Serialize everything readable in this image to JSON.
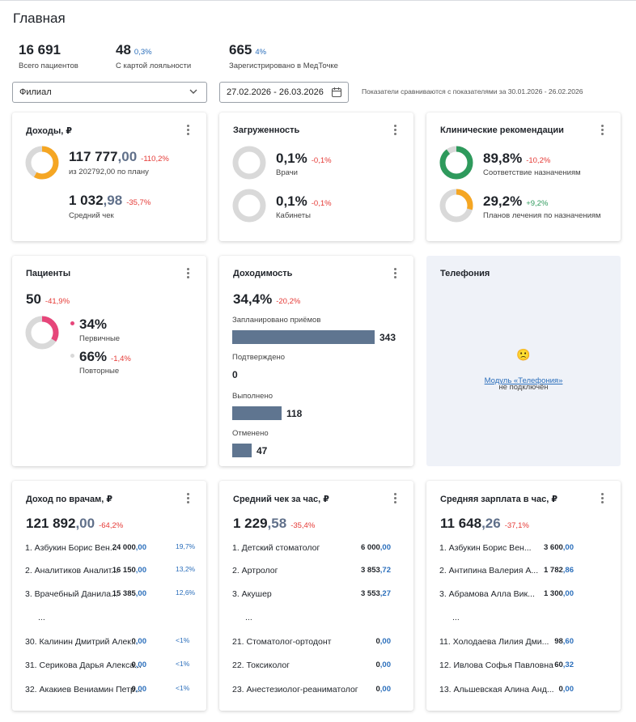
{
  "page": {
    "title": "Главная"
  },
  "stats": [
    {
      "value": "16 691",
      "pct": "",
      "label": "Всего пациентов"
    },
    {
      "value": "48",
      "pct": "0,3%",
      "label": "С картой лояльности"
    },
    {
      "value": "665",
      "pct": "4%",
      "label": "Зарегистрировано в МедТочке"
    }
  ],
  "filters": {
    "branch": "Филиал",
    "date_range": "27.02.2026 - 26.03.2026",
    "compare_text": "Показатели сравниваются с показателями за 30.01.2026 - 26.02.2026"
  },
  "income": {
    "title": "Доходы, ₽",
    "main_int": "117 777",
    "main_frac": ",00",
    "main_change": "-110,2%",
    "plan_text": "из 202792,00 по плану",
    "plan_progress_pct": 58,
    "avg_int": "1 032",
    "avg_frac": ",98",
    "avg_change": "-35,7%",
    "avg_label": "Средний чек"
  },
  "load": {
    "title": "Загруженность",
    "doctors_value": "0,1%",
    "doctors_change": "-0,1%",
    "doctors_label": "Врачи",
    "rooms_value": "0,1%",
    "rooms_change": "-0,1%",
    "rooms_label": "Кабинеты"
  },
  "clinical": {
    "title": "Клинические рекомендации",
    "compliance_value": "89,8%",
    "compliance_change": "-10,2%",
    "compliance_label": "Соответствие назначениям",
    "plans_value": "29,2%",
    "plans_change": "+9,2%",
    "plans_label": "Планов лечения по назначениям"
  },
  "patients": {
    "title": "Пациенты",
    "total": "50",
    "total_change": "-41,9%",
    "primary_pct": "34%",
    "primary_label": "Первичные",
    "repeat_pct": "66%",
    "repeat_change": "-1,4%",
    "repeat_label": "Повторные"
  },
  "profitability": {
    "title": "Доходимость",
    "value": "34,4%",
    "change": "-20,2%",
    "rows": [
      {
        "label": "Запланировано приёмов",
        "value": "343",
        "count": 343
      },
      {
        "label": "Подтверждено",
        "value": "0",
        "count": 0
      },
      {
        "label": "Выполнено",
        "value": "118",
        "count": 118
      },
      {
        "label": "Отменено",
        "value": "47",
        "count": 47
      }
    ]
  },
  "telephony": {
    "title": "Телефония",
    "emoji": "🙁",
    "link_text": "Модуль «Телефония»",
    "status_text": "не подключён"
  },
  "doctor_income": {
    "title": "Доход по врачам, ₽",
    "total_int": "121 892",
    "total_frac": ",00",
    "change": "-64,2%",
    "rows": [
      {
        "name": "1. Азбукин Борис Вен...",
        "int": "24 000",
        "frac": ",00",
        "pct": "19,7%"
      },
      {
        "name": "2. Аналитиков Аналит...",
        "int": "16 150",
        "frac": ",00",
        "pct": "13,2%"
      },
      {
        "name": "3. Врачебный Данила...",
        "int": "15 385",
        "frac": ",00",
        "pct": "12,6%"
      },
      {
        "name": "30. Калинин Дмитрий Алек...",
        "int": "0",
        "frac": ",00",
        "pct": "<1%"
      },
      {
        "name": "31. Серикова Дарья Алекса...",
        "int": "0",
        "frac": ",00",
        "pct": "<1%"
      },
      {
        "name": "32. Акакиев Вениамин Петр...",
        "int": "0",
        "frac": ",00",
        "pct": "<1%"
      }
    ],
    "ellipsis": "..."
  },
  "avg_check_hour": {
    "title": "Средний чек за час, ₽",
    "total_int": "1 229",
    "total_frac": ",58",
    "change": "-35,4%",
    "rows": [
      {
        "name": "1. Детский стоматолог",
        "int": "6 000",
        "frac": ",00"
      },
      {
        "name": "2. Артролог",
        "int": "3 853",
        "frac": ",72"
      },
      {
        "name": "3. Акушер",
        "int": "3 553",
        "frac": ",27"
      },
      {
        "name": "21. Стоматолог-ортодонт",
        "int": "0",
        "frac": ",00"
      },
      {
        "name": "22. Токсиколог",
        "int": "0",
        "frac": ",00"
      },
      {
        "name": "23. Анестезиолог-реаниматолог",
        "int": "0",
        "frac": ",00"
      }
    ],
    "ellipsis": "..."
  },
  "avg_salary_hour": {
    "title": "Средняя зарплата в час, ₽",
    "total_int": "11 648",
    "total_frac": ",26",
    "change": "-37,1%",
    "rows": [
      {
        "name": "1. Азбукин Борис Вен...",
        "int": "3 600",
        "frac": ",00"
      },
      {
        "name": "2. Антипина Валерия А...",
        "int": "1 782",
        "frac": ",86"
      },
      {
        "name": "3. Абрамова Алла Вик...",
        "int": "1 300",
        "frac": ",00"
      },
      {
        "name": "11. Холодаева Лилия Дми...",
        "int": "98",
        "frac": ",60"
      },
      {
        "name": "12. Ивлова Софья Павловна",
        "int": "60",
        "frac": ",32"
      },
      {
        "name": "13. Альшевская Алина Анд...",
        "int": "0",
        "frac": ",00"
      }
    ],
    "ellipsis": "..."
  },
  "colors": {
    "accent": "#f5a623",
    "green": "#2e9a5c",
    "pink": "#e6467a",
    "ring_bg": "#d9d9d9",
    "bar": "#5f7590",
    "neg": "#e53935",
    "link": "#2a6ebb"
  }
}
